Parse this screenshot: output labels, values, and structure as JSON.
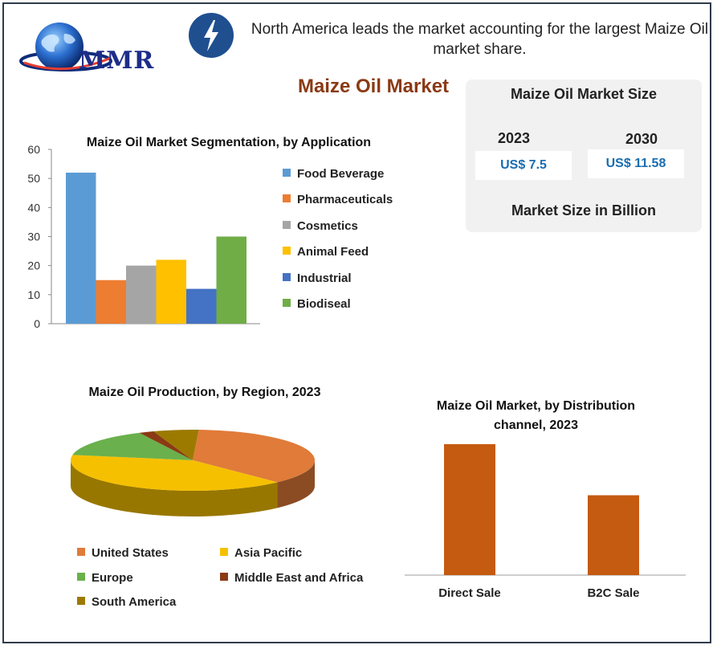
{
  "brand": {
    "logo_text": "MMR"
  },
  "header": {
    "icon": "lightning-bolt-icon",
    "headline": "North America leads the market accounting for the largest Maize Oil market share."
  },
  "main_title": "Maize Oil Market",
  "market_size": {
    "title": "Maize Oil Market Size",
    "year_a": "2023",
    "value_a": "US$ 7.5",
    "year_b": "2030",
    "value_b": "US$ 11.58",
    "footer": "Market Size in Billion"
  },
  "chart_data": [
    {
      "type": "bar",
      "title": "Maize Oil Market Segmentation, by Application",
      "categories": [
        "Food Beverage",
        "Pharmaceuticals",
        "Cosmetics",
        "Animal Feed",
        "Industrial",
        "Biodiseal"
      ],
      "values": [
        52,
        15,
        20,
        22,
        12,
        30
      ],
      "colors": [
        "#5b9bd5",
        "#ed7d31",
        "#a5a5a5",
        "#ffc000",
        "#4472c4",
        "#70ad47"
      ],
      "ylim": [
        0,
        60
      ],
      "yticks": [
        0,
        10,
        20,
        30,
        40,
        50,
        60
      ],
      "legend": "right"
    },
    {
      "type": "pie",
      "title": "Maize Oil Production, by Region, 2023",
      "categories": [
        "United States",
        "Asia Pacific",
        "Europe",
        "Middle East and Africa",
        "South America"
      ],
      "values": [
        37,
        40,
        15,
        2,
        6
      ],
      "colors": [
        "#e07b39",
        "#f5c000",
        "#6ab04c",
        "#8b3a14",
        "#9c7a00"
      ],
      "legend": "bottom"
    },
    {
      "type": "bar",
      "title": "Maize Oil Market, by Distribution channel, 2023",
      "categories": [
        "Direct Sale",
        "B2C Sale"
      ],
      "values": [
        100,
        61
      ],
      "colors": [
        "#c55a11",
        "#c55a11"
      ],
      "ylim": [
        0,
        100
      ],
      "legend": "none"
    }
  ]
}
